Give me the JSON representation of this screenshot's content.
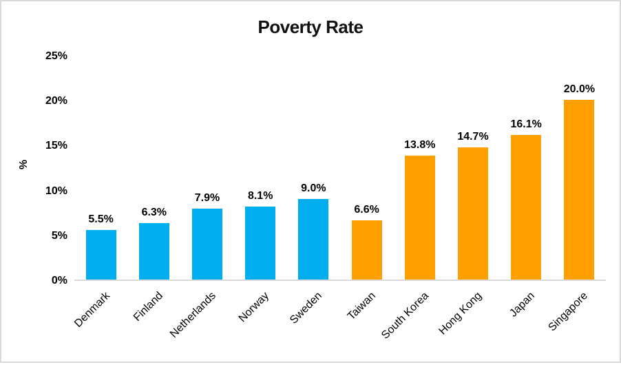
{
  "chart_data": {
    "type": "bar",
    "title": "Poverty Rate",
    "xlabel": "",
    "ylabel": "%",
    "ylim": [
      0,
      25
    ],
    "grid": false,
    "legend": false,
    "yticks": [
      {
        "value": 0,
        "label": "0%"
      },
      {
        "value": 5,
        "label": "5%"
      },
      {
        "value": 10,
        "label": "10%"
      },
      {
        "value": 15,
        "label": "15%"
      },
      {
        "value": 20,
        "label": "20%"
      },
      {
        "value": 25,
        "label": "25%"
      }
    ],
    "categories": [
      "Denmark",
      "Finland",
      "Netherlands",
      "Norway",
      "Sweden",
      "Taiwan",
      "South Korea",
      "Hong Kong",
      "Japan",
      "Singapore"
    ],
    "values": [
      5.5,
      6.3,
      7.9,
      8.1,
      9.0,
      6.6,
      13.8,
      14.7,
      16.1,
      20.0
    ],
    "bars": [
      {
        "category": "Denmark",
        "value": 5.5,
        "label": "5.5%",
        "color": "#00AEEF"
      },
      {
        "category": "Finland",
        "value": 6.3,
        "label": "6.3%",
        "color": "#00AEEF"
      },
      {
        "category": "Netherlands",
        "value": 7.9,
        "label": "7.9%",
        "color": "#00AEEF"
      },
      {
        "category": "Norway",
        "value": 8.1,
        "label": "8.1%",
        "color": "#00AEEF"
      },
      {
        "category": "Sweden",
        "value": 9.0,
        "label": "9.0%",
        "color": "#00AEEF"
      },
      {
        "category": "Taiwan",
        "value": 6.6,
        "label": "6.6%",
        "color": "#FFA000"
      },
      {
        "category": "South Korea",
        "value": 13.8,
        "label": "13.8%",
        "color": "#FFA000"
      },
      {
        "category": "Hong Kong",
        "value": 14.7,
        "label": "14.7%",
        "color": "#FFA000"
      },
      {
        "category": "Japan",
        "value": 16.1,
        "label": "16.1%",
        "color": "#FFA000"
      },
      {
        "category": "Singapore",
        "value": 20.0,
        "label": "20.0%",
        "color": "#FFA000"
      }
    ],
    "colors": {
      "series_blue": "#00AEEF",
      "series_orange": "#FFA000",
      "baseline": "#d9d9d9",
      "frame_border": "#d9d9d9",
      "text": "#000000"
    }
  }
}
